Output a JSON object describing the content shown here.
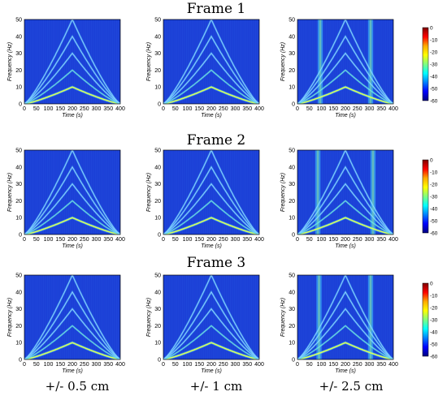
{
  "rows": [
    {
      "title": "Frame 1"
    },
    {
      "title": "Frame 2"
    },
    {
      "title": "Frame 3"
    }
  ],
  "columns": [
    {
      "label": "+/- 0.5 cm"
    },
    {
      "label": "+/- 1 cm"
    },
    {
      "label": "+/- 2.5 cm"
    }
  ],
  "chart_data": {
    "type": "heatmap",
    "xlabel": "Time (s)",
    "ylabel": "Frequency (Hz)",
    "xlim": [
      0,
      400
    ],
    "ylim": [
      0,
      50
    ],
    "xticks": [
      0,
      50,
      100,
      150,
      200,
      250,
      300,
      350,
      400
    ],
    "yticks": [
      0,
      10,
      20,
      30,
      40,
      50
    ],
    "colorbar": {
      "ticks": [
        0,
        -10,
        -20,
        -30,
        -40,
        -50,
        -60
      ],
      "range": [
        -60,
        0
      ],
      "colors": [
        "#7f0000",
        "#ff0000",
        "#ffaa00",
        "#ffff00",
        "#80ff80",
        "#00ffff",
        "#0080ff",
        "#0000ff",
        "#000080"
      ]
    },
    "pattern": {
      "peak_time": 200,
      "fundamental_peak_hz": 10,
      "harmonic_peaks_hz": [
        10,
        20,
        30,
        40,
        50
      ]
    },
    "panels": [
      {
        "frame": "Frame 1",
        "tolerance": "+/- 0.5 cm",
        "vertical_bands_s": []
      },
      {
        "frame": "Frame 1",
        "tolerance": "+/- 1 cm",
        "vertical_bands_s": []
      },
      {
        "frame": "Frame 1",
        "tolerance": "+/- 2.5 cm",
        "vertical_bands_s": [
          95,
          305
        ]
      },
      {
        "frame": "Frame 2",
        "tolerance": "+/- 0.5 cm",
        "vertical_bands_s": []
      },
      {
        "frame": "Frame 2",
        "tolerance": "+/- 1 cm",
        "vertical_bands_s": []
      },
      {
        "frame": "Frame 2",
        "tolerance": "+/- 2.5 cm",
        "vertical_bands_s": [
          85,
          315
        ]
      },
      {
        "frame": "Frame 3",
        "tolerance": "+/- 0.5 cm",
        "vertical_bands_s": []
      },
      {
        "frame": "Frame 3",
        "tolerance": "+/- 1 cm",
        "vertical_bands_s": []
      },
      {
        "frame": "Frame 3",
        "tolerance": "+/- 2.5 cm",
        "vertical_bands_s": [
          90,
          305
        ]
      }
    ]
  }
}
